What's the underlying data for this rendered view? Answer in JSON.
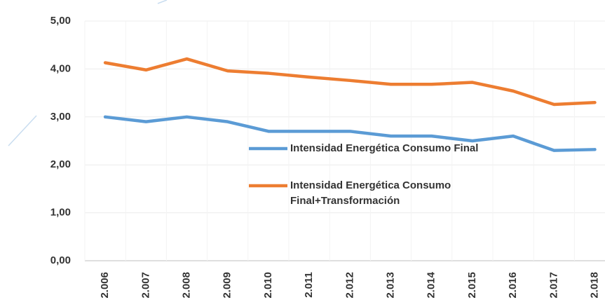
{
  "chart_data": {
    "type": "line",
    "categories": [
      "2.006",
      "2.007",
      "2.008",
      "2.009",
      "2.010",
      "2.011",
      "2.012",
      "2.013",
      "2.014",
      "2.015",
      "2.016",
      "2.017",
      "2.018"
    ],
    "series": [
      {
        "name": "Intensidad Energética Consumo Final",
        "color": "#5b9bd5",
        "values": [
          3.0,
          2.9,
          3.0,
          2.9,
          2.7,
          2.7,
          2.7,
          2.6,
          2.6,
          2.5,
          2.6,
          2.3,
          2.32
        ]
      },
      {
        "name": "Intensidad Energética Consumo Final+Transformación",
        "color": "#ed7d31",
        "values": [
          4.13,
          3.98,
          4.21,
          3.96,
          3.91,
          3.83,
          3.76,
          3.68,
          3.68,
          3.72,
          3.54,
          3.26,
          3.3
        ]
      }
    ],
    "ylim": [
      0,
      5
    ],
    "yticks": [
      {
        "value": 0,
        "label": "0,00"
      },
      {
        "value": 1,
        "label": "1,00"
      },
      {
        "value": 2,
        "label": "2,00"
      },
      {
        "value": 3,
        "label": "3,00"
      },
      {
        "value": 4,
        "label": "4,00"
      },
      {
        "value": 5,
        "label": "5,00"
      }
    ],
    "grid": true
  }
}
